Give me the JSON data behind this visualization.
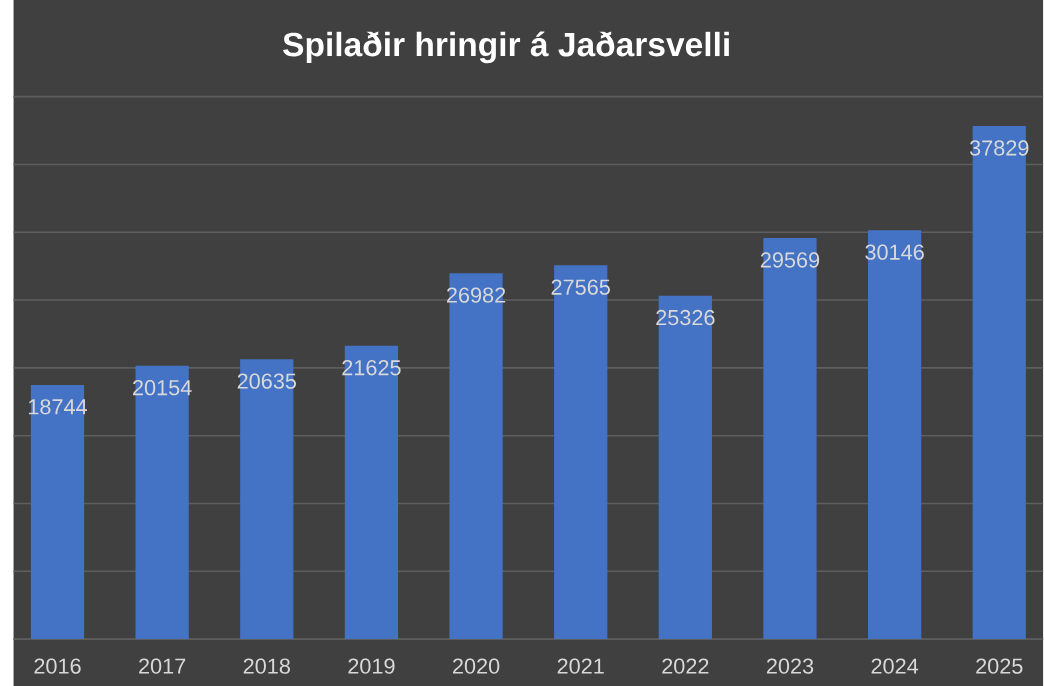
{
  "chart_data": {
    "type": "bar",
    "title": "Spilaðir hringir á Jaðarsvelli",
    "categories": [
      "2016",
      "2017",
      "2018",
      "2019",
      "2020",
      "2021",
      "2022",
      "2023",
      "2024",
      "2025"
    ],
    "values": [
      18744,
      20154,
      20635,
      21625,
      26982,
      27565,
      25326,
      29569,
      30146,
      37829
    ],
    "color": "#4472c4",
    "ylim": [
      0,
      40000
    ],
    "yticks": [
      {
        "value": 0,
        "label": null
      },
      {
        "value": 5000,
        "label": null
      },
      {
        "value": 10000,
        "label": null
      },
      {
        "value": 15000,
        "label": null
      },
      {
        "value": 20000,
        "label": null
      },
      {
        "value": 25000,
        "label": null
      },
      {
        "value": 30000,
        "label": null
      },
      {
        "value": 35000,
        "label": null
      },
      {
        "value": 40000,
        "label": null
      }
    ],
    "tick_labels": "x",
    "grid": "y",
    "data_labels": true
  }
}
